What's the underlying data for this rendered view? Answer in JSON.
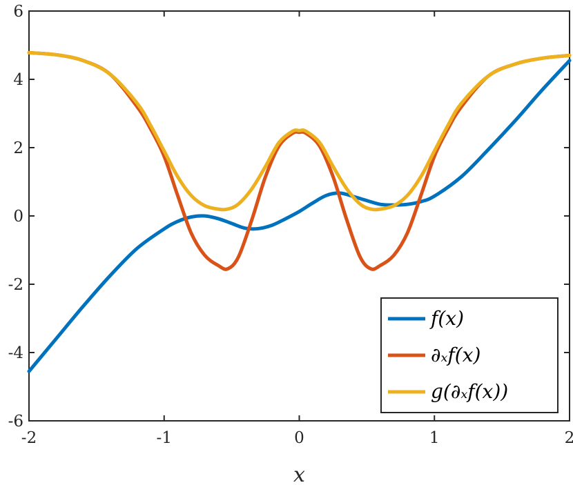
{
  "chart_data": {
    "type": "line",
    "title": "",
    "xlabel": "x",
    "ylabel": "",
    "xlim": [
      -2,
      2
    ],
    "ylim": [
      -6,
      6
    ],
    "xticks": [
      -2,
      -1,
      0,
      1,
      2
    ],
    "yticks": [
      -6,
      -4,
      -2,
      0,
      2,
      4,
      6
    ],
    "xtick_labels": [
      "-2",
      "-1",
      "0",
      "1",
      "2"
    ],
    "ytick_labels": [
      "-6",
      "-4",
      "-2",
      "0",
      "2",
      "4",
      "6"
    ],
    "grid": false,
    "legend_position": "bottom-right",
    "series": [
      {
        "name": "f(x)",
        "color": "#0072BD",
        "x": [
          -2.0,
          -1.8,
          -1.6,
          -1.4,
          -1.2,
          -1.0,
          -0.9,
          -0.8,
          -0.7,
          -0.6,
          -0.5,
          -0.4,
          -0.3,
          -0.2,
          -0.1,
          0.0,
          0.1,
          0.2,
          0.3,
          0.4,
          0.5,
          0.6,
          0.7,
          0.8,
          0.9,
          1.0,
          1.2,
          1.4,
          1.6,
          1.8,
          2.0
        ],
        "y": [
          -4.55,
          -3.6,
          -2.65,
          -1.75,
          -0.95,
          -0.38,
          -0.16,
          -0.03,
          0.0,
          -0.08,
          -0.22,
          -0.36,
          -0.37,
          -0.27,
          -0.08,
          0.13,
          0.38,
          0.6,
          0.67,
          0.57,
          0.45,
          0.34,
          0.32,
          0.34,
          0.42,
          0.58,
          1.15,
          1.95,
          2.8,
          3.7,
          4.55
        ]
      },
      {
        "name": "∂ₓf(x)",
        "color": "#D95319",
        "x": [
          -2.0,
          -1.8,
          -1.6,
          -1.4,
          -1.2,
          -1.1,
          -1.0,
          -0.9,
          -0.8,
          -0.7,
          -0.6,
          -0.53,
          -0.45,
          -0.35,
          -0.25,
          -0.15,
          -0.05,
          0.0,
          0.05,
          0.15,
          0.25,
          0.35,
          0.45,
          0.53,
          0.6,
          0.7,
          0.8,
          0.9,
          1.0,
          1.1,
          1.2,
          1.4,
          1.6,
          1.8,
          2.0
        ],
        "y": [
          4.78,
          4.72,
          4.55,
          4.15,
          3.2,
          2.55,
          1.75,
          0.6,
          -0.5,
          -1.15,
          -1.45,
          -1.55,
          -1.2,
          -0.1,
          1.15,
          2.05,
          2.42,
          2.45,
          2.42,
          2.05,
          1.15,
          -0.1,
          -1.2,
          -1.55,
          -1.45,
          -1.15,
          -0.5,
          0.6,
          1.75,
          2.55,
          3.2,
          4.1,
          4.45,
          4.62,
          4.7
        ]
      },
      {
        "name": "g(∂ₓf(x))",
        "color": "#EDB120",
        "x": [
          -2.0,
          -1.8,
          -1.6,
          -1.4,
          -1.2,
          -1.1,
          -1.0,
          -0.9,
          -0.8,
          -0.7,
          -0.6,
          -0.53,
          -0.45,
          -0.35,
          -0.25,
          -0.15,
          -0.05,
          0.0,
          0.05,
          0.15,
          0.25,
          0.35,
          0.45,
          0.53,
          0.6,
          0.7,
          0.8,
          0.9,
          1.0,
          1.1,
          1.2,
          1.4,
          1.6,
          1.8,
          2.0
        ],
        "y": [
          4.78,
          4.72,
          4.55,
          4.15,
          3.3,
          2.65,
          1.9,
          1.15,
          0.6,
          0.3,
          0.2,
          0.2,
          0.35,
          0.8,
          1.45,
          2.15,
          2.48,
          2.5,
          2.48,
          2.15,
          1.45,
          0.8,
          0.35,
          0.2,
          0.2,
          0.3,
          0.6,
          1.15,
          1.9,
          2.65,
          3.3,
          4.1,
          4.45,
          4.62,
          4.7
        ]
      }
    ]
  }
}
